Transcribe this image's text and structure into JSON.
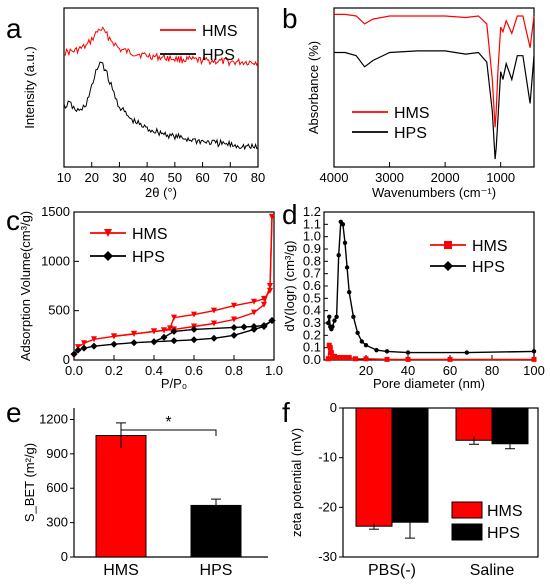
{
  "panels": {
    "a": {
      "letter": "a"
    },
    "b": {
      "letter": "b"
    },
    "c": {
      "letter": "c"
    },
    "d": {
      "letter": "d"
    },
    "e": {
      "letter": "e"
    },
    "f": {
      "letter": "f"
    }
  },
  "colors": {
    "HMS": "#ff0000",
    "HPS": "#000000"
  },
  "chart_data": [
    {
      "id": "a",
      "type": "line",
      "title": "",
      "xlabel": "2θ (°)",
      "ylabel": "Intensity (a.u.)",
      "xlim": [
        10,
        80
      ],
      "xticks": [
        10,
        20,
        30,
        40,
        50,
        60,
        70,
        80
      ],
      "yticks_shown": false,
      "legend": "top-right",
      "series": [
        {
          "name": "HMS",
          "x": [
            10,
            14,
            18,
            20,
            22,
            23,
            24,
            26,
            28,
            30,
            34,
            40,
            50,
            60,
            70,
            80
          ],
          "y": [
            0.72,
            0.73,
            0.76,
            0.8,
            0.85,
            0.87,
            0.86,
            0.82,
            0.78,
            0.74,
            0.72,
            0.7,
            0.68,
            0.67,
            0.66,
            0.66
          ]
        },
        {
          "name": "HPS",
          "x": [
            10,
            12,
            14,
            16,
            18,
            20,
            22,
            23,
            24,
            26,
            28,
            30,
            34,
            40,
            50,
            60,
            70,
            80
          ],
          "y": [
            0.38,
            0.4,
            0.36,
            0.35,
            0.4,
            0.5,
            0.62,
            0.66,
            0.65,
            0.56,
            0.46,
            0.38,
            0.3,
            0.24,
            0.19,
            0.16,
            0.14,
            0.12
          ]
        }
      ]
    },
    {
      "id": "b",
      "type": "line",
      "title": "",
      "xlabel": "Wavenumbers (cm⁻¹)",
      "ylabel": "Absorbance (%)",
      "xlim": [
        4000,
        400
      ],
      "xticks": [
        4000,
        3000,
        2000,
        1000
      ],
      "yticks_shown": false,
      "legend": "bottom-left",
      "series": [
        {
          "name": "HMS",
          "x": [
            4000,
            3800,
            3600,
            3450,
            3300,
            3000,
            2500,
            2000,
            1630,
            1400,
            1250,
            1150,
            1100,
            1080,
            1050,
            1000,
            960,
            900,
            800,
            700,
            600,
            470,
            400
          ],
          "y": [
            0.96,
            0.96,
            0.95,
            0.9,
            0.93,
            0.95,
            0.95,
            0.95,
            0.94,
            0.95,
            0.9,
            0.55,
            0.25,
            0.35,
            0.6,
            0.88,
            0.85,
            0.92,
            0.84,
            0.95,
            0.95,
            0.75,
            0.95
          ]
        },
        {
          "name": "HPS",
          "x": [
            4000,
            3800,
            3600,
            3450,
            3300,
            3000,
            2500,
            2000,
            1630,
            1400,
            1250,
            1150,
            1100,
            1080,
            1050,
            1000,
            960,
            900,
            800,
            700,
            600,
            470,
            400
          ],
          "y": [
            0.72,
            0.72,
            0.7,
            0.63,
            0.67,
            0.72,
            0.73,
            0.73,
            0.71,
            0.72,
            0.66,
            0.35,
            0.05,
            0.12,
            0.3,
            0.6,
            0.55,
            0.65,
            0.55,
            0.7,
            0.7,
            0.4,
            0.7
          ]
        }
      ]
    },
    {
      "id": "c",
      "type": "line",
      "title": "",
      "xlabel": "P/P₀",
      "ylabel": "Adsorption Volume(cm³/g)",
      "xlim": [
        0.0,
        1.0
      ],
      "ylim": [
        0,
        1500
      ],
      "xticks": [
        0.0,
        0.2,
        0.4,
        0.6,
        0.8,
        1.0
      ],
      "yticks": [
        0,
        500,
        1000,
        1500
      ],
      "legend": "top-left",
      "series": [
        {
          "name": "HMS",
          "x": [
            0.0,
            0.02,
            0.05,
            0.1,
            0.2,
            0.3,
            0.4,
            0.45,
            0.5,
            0.6,
            0.7,
            0.8,
            0.9,
            0.95,
            0.98,
            0.99
          ],
          "y": [
            40,
            130,
            170,
            210,
            240,
            265,
            290,
            300,
            310,
            340,
            370,
            410,
            480,
            560,
            750,
            1450
          ]
        },
        {
          "name": "HMS desorption",
          "x": [
            0.99,
            0.98,
            0.95,
            0.9,
            0.8,
            0.7,
            0.6,
            0.5,
            0.48,
            0.45,
            0.4,
            0.3,
            0.2
          ],
          "y": [
            1450,
            700,
            620,
            590,
            550,
            500,
            460,
            430,
            320,
            300,
            290,
            265,
            240
          ]
        },
        {
          "name": "HPS",
          "x": [
            0.0,
            0.02,
            0.05,
            0.1,
            0.2,
            0.3,
            0.4,
            0.5,
            0.6,
            0.7,
            0.8,
            0.9,
            0.95,
            0.99
          ],
          "y": [
            60,
            100,
            120,
            140,
            160,
            175,
            185,
            195,
            205,
            220,
            250,
            310,
            340,
            400
          ]
        },
        {
          "name": "HPS desorption",
          "x": [
            0.99,
            0.95,
            0.9,
            0.85,
            0.8,
            0.6,
            0.5,
            0.45,
            0.4
          ],
          "y": [
            400,
            350,
            340,
            335,
            330,
            310,
            290,
            230,
            185
          ]
        }
      ]
    },
    {
      "id": "d",
      "type": "line",
      "title": "",
      "xlabel": "Pore diameter (nm)",
      "ylabel": "dV(logr) (cm³/g)",
      "xlim": [
        0,
        100
      ],
      "ylim": [
        0.0,
        1.2
      ],
      "xticks": [
        20,
        40,
        60,
        80,
        100
      ],
      "yticks": [
        0.0,
        0.1,
        0.2,
        0.3,
        0.4,
        0.5,
        0.6,
        0.7,
        0.8,
        0.9,
        1.0,
        1.1,
        1.2
      ],
      "legend": "top-right",
      "series": [
        {
          "name": "HMS",
          "x": [
            2,
            2.5,
            3,
            3.5,
            4,
            5,
            6,
            7,
            8,
            10,
            12,
            15,
            20,
            30,
            40,
            60,
            100
          ],
          "y": [
            0.01,
            0.12,
            0.1,
            0.06,
            0.02,
            0.03,
            0.02,
            0.02,
            0.02,
            0.02,
            0.02,
            0.01,
            0.01,
            0.005,
            0.005,
            0.005,
            0.005
          ]
        },
        {
          "name": "HPS",
          "x": [
            2,
            2.5,
            3,
            3.5,
            4,
            5,
            6,
            7,
            8,
            9,
            10,
            11,
            12,
            14,
            16,
            18,
            20,
            25,
            30,
            40,
            68,
            100
          ],
          "y": [
            0.3,
            0.35,
            0.27,
            0.25,
            0.27,
            0.32,
            0.35,
            0.85,
            1.12,
            1.1,
            0.95,
            0.75,
            0.55,
            0.35,
            0.22,
            0.15,
            0.12,
            0.08,
            0.07,
            0.06,
            0.06,
            0.07
          ]
        }
      ]
    },
    {
      "id": "e",
      "type": "bar",
      "title": "",
      "xlabel": "",
      "ylabel": "S_BET (m²/g)",
      "ylim": [
        0,
        1300
      ],
      "yticks": [
        0,
        300,
        600,
        900,
        1200
      ],
      "categories": [
        "HMS",
        "HPS"
      ],
      "values": [
        1060,
        450
      ],
      "errors": [
        110,
        55
      ],
      "bar_colors": [
        "#ff0000",
        "#000000"
      ],
      "significance": "*"
    },
    {
      "id": "f",
      "type": "bar",
      "title": "",
      "xlabel": "",
      "ylabel": "zeta potential (mV)",
      "ylim": [
        -30,
        0
      ],
      "yticks": [
        0,
        -10,
        -20,
        -30
      ],
      "categories": [
        "PBS(-)",
        "Saline"
      ],
      "legend": "bottom-right",
      "series": [
        {
          "name": "HMS",
          "values": [
            -23.8,
            -6.5
          ],
          "errors": [
            0.6,
            0.8
          ]
        },
        {
          "name": "HPS",
          "values": [
            -23.0,
            -7.2
          ],
          "errors": [
            3.2,
            1.0
          ]
        }
      ]
    }
  ]
}
